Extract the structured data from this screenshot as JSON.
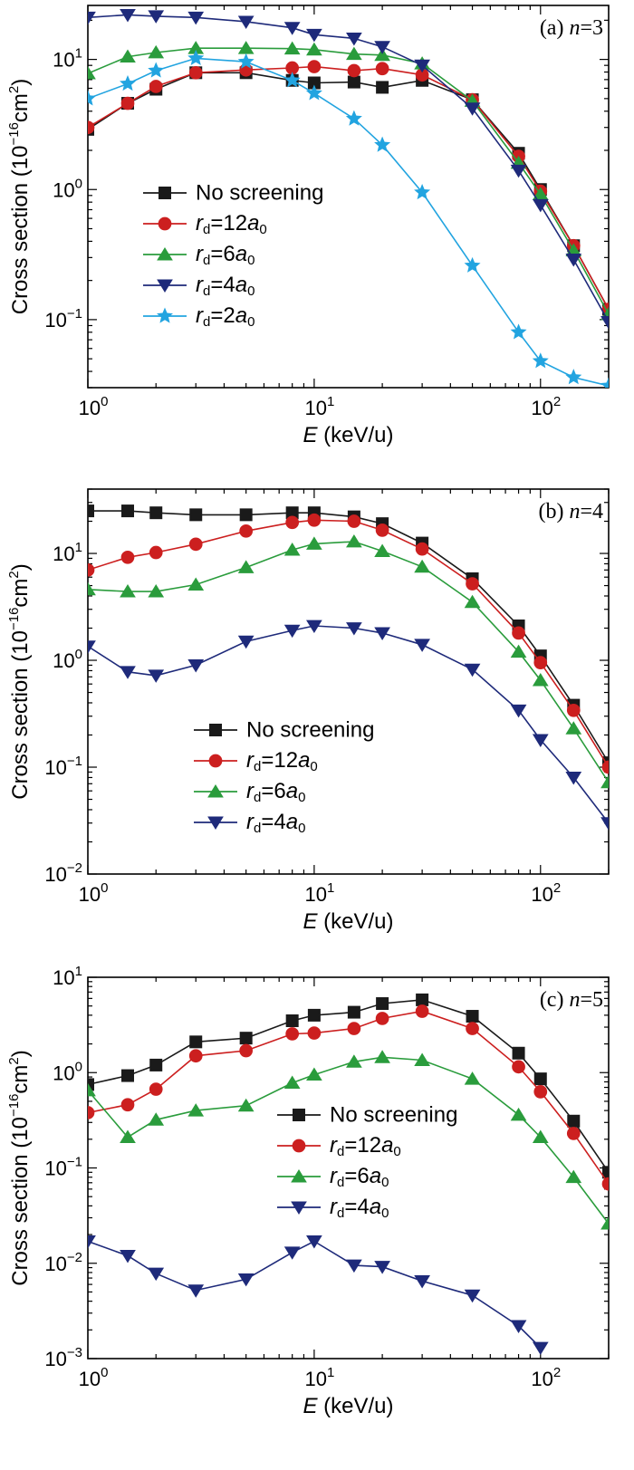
{
  "chart_data": [
    {
      "type": "line",
      "panel_label": "(a) n=3",
      "xlabel": "E (keV/u)",
      "ylabel": "Cross section (10⁻¹⁶cm²)",
      "xscale": "log",
      "yscale": "log",
      "xlim": [
        1,
        200
      ],
      "ylim": [
        0.03,
        26
      ],
      "x_ticks": [
        1,
        10,
        100
      ],
      "x_tick_labels": [
        "10⁰",
        "10¹",
        "10²"
      ],
      "y_ticks": [
        0.1,
        1,
        10
      ],
      "y_tick_labels": [
        "10⁻¹",
        "10⁰",
        "10¹"
      ],
      "legend_position": "center-left",
      "series": [
        {
          "name": "No screening",
          "color": "#1a1a1a",
          "marker": "square",
          "x": [
            1,
            1.5,
            2,
            3,
            5,
            8,
            10,
            15,
            20,
            30,
            50,
            80,
            100,
            140,
            200
          ],
          "y": [
            2.9,
            4.6,
            5.9,
            7.9,
            7.9,
            6.9,
            6.6,
            6.7,
            6.1,
            6.9,
            4.9,
            1.9,
            1.0,
            0.37,
            0.12
          ]
        },
        {
          "name": "rd=12a0",
          "color": "#cc1f1f",
          "marker": "circle",
          "x": [
            1,
            1.5,
            2,
            3,
            5,
            8,
            10,
            15,
            20,
            30,
            50,
            80,
            100,
            140,
            200
          ],
          "y": [
            3.0,
            4.6,
            6.2,
            7.9,
            8.3,
            8.6,
            8.8,
            8.2,
            8.5,
            7.6,
            4.9,
            1.8,
            0.97,
            0.37,
            0.12
          ]
        },
        {
          "name": "rd=6a0",
          "color": "#2a9c3c",
          "marker": "triangle-up",
          "x": [
            1,
            1.5,
            2,
            3,
            5,
            8,
            10,
            15,
            20,
            30,
            50,
            80,
            100,
            140,
            200
          ],
          "y": [
            7.8,
            10.5,
            11.3,
            12.2,
            12.2,
            12.1,
            11.9,
            11.0,
            10.8,
            9.3,
            4.8,
            1.6,
            0.92,
            0.34,
            0.11
          ]
        },
        {
          "name": "rd=4a0",
          "color": "#1e2a7a",
          "marker": "triangle-down",
          "x": [
            1,
            1.5,
            2,
            3,
            5,
            8,
            10,
            15,
            20,
            30,
            50,
            80,
            100,
            140,
            200
          ],
          "y": [
            21,
            22,
            21.5,
            21,
            19.5,
            17.5,
            15.5,
            14.5,
            12.5,
            9.0,
            4.2,
            1.4,
            0.76,
            0.29,
            0.096
          ]
        },
        {
          "name": "rd=2a0",
          "color": "#22a4e0",
          "marker": "star",
          "x": [
            1,
            1.5,
            2,
            3,
            5,
            8,
            10,
            15,
            20,
            30,
            50,
            80,
            100,
            140,
            200
          ],
          "y": [
            5.0,
            6.5,
            8.2,
            10.2,
            9.6,
            6.9,
            5.5,
            3.5,
            2.2,
            0.95,
            0.26,
            0.08,
            0.048,
            0.036,
            0.031
          ]
        }
      ]
    },
    {
      "type": "line",
      "panel_label": "(b) n=4",
      "xlabel": "E (keV/u)",
      "ylabel": "Cross section (10⁻¹⁶cm²)",
      "xscale": "log",
      "yscale": "log",
      "xlim": [
        1,
        200
      ],
      "ylim": [
        0.01,
        40
      ],
      "x_ticks": [
        1,
        10,
        100
      ],
      "x_tick_labels": [
        "10⁰",
        "10¹",
        "10²"
      ],
      "y_ticks": [
        0.01,
        0.1,
        1,
        10
      ],
      "y_tick_labels": [
        "10⁻²",
        "10⁻¹",
        "10⁰",
        "10¹"
      ],
      "legend_position": "lower-center",
      "series": [
        {
          "name": "No screening",
          "color": "#1a1a1a",
          "marker": "square",
          "x": [
            1,
            1.5,
            2,
            3,
            5,
            8,
            10,
            15,
            20,
            30,
            50,
            80,
            100,
            140,
            200
          ],
          "y": [
            25,
            25,
            24,
            23,
            23,
            24,
            24,
            22,
            19,
            12.5,
            5.8,
            2.1,
            1.1,
            0.38,
            0.11
          ]
        },
        {
          "name": "rd=12a0",
          "color": "#cc1f1f",
          "marker": "circle",
          "x": [
            1,
            1.5,
            2,
            3,
            5,
            8,
            10,
            15,
            20,
            30,
            50,
            80,
            100,
            140,
            200
          ],
          "y": [
            7.0,
            9.2,
            10.2,
            12.2,
            16.2,
            19.5,
            20.5,
            20.0,
            16.5,
            11.0,
            5.2,
            1.8,
            0.95,
            0.34,
            0.1
          ]
        },
        {
          "name": "rd=6a0",
          "color": "#2a9c3c",
          "marker": "triangle-up",
          "x": [
            1,
            1.5,
            2,
            3,
            5,
            8,
            10,
            15,
            20,
            30,
            50,
            80,
            100,
            140,
            200
          ],
          "y": [
            4.6,
            4.4,
            4.4,
            5.1,
            7.4,
            10.8,
            12.3,
            12.9,
            10.5,
            7.5,
            3.5,
            1.2,
            0.65,
            0.23,
            0.072
          ]
        },
        {
          "name": "rd=4a0",
          "color": "#1e2a7a",
          "marker": "triangle-down",
          "x": [
            1,
            1.5,
            2,
            3,
            5,
            8,
            10,
            15,
            20,
            30,
            50,
            80,
            100,
            140,
            200
          ],
          "y": [
            1.35,
            0.78,
            0.72,
            0.9,
            1.5,
            1.9,
            2.1,
            2.0,
            1.8,
            1.4,
            0.82,
            0.34,
            0.18,
            0.08,
            0.03
          ]
        }
      ]
    },
    {
      "type": "line",
      "panel_label": "(c) n=5",
      "xlabel": "E (keV/u)",
      "ylabel": "Cross section (10⁻¹⁶cm²)",
      "xscale": "log",
      "yscale": "log",
      "xlim": [
        1,
        200
      ],
      "ylim": [
        0.001,
        10
      ],
      "x_ticks": [
        1,
        10,
        100
      ],
      "x_tick_labels": [
        "10⁰",
        "10¹",
        "10²"
      ],
      "y_ticks": [
        0.001,
        0.01,
        0.1,
        1,
        10
      ],
      "y_tick_labels": [
        "10⁻³",
        "10⁻²",
        "10⁻¹",
        "10⁰",
        "10¹"
      ],
      "legend_position": "center-right",
      "series": [
        {
          "name": "No screening",
          "color": "#1a1a1a",
          "marker": "square",
          "x": [
            1,
            1.5,
            2,
            3,
            5,
            8,
            10,
            15,
            20,
            30,
            50,
            80,
            100,
            140,
            200
          ],
          "y": [
            0.75,
            0.93,
            1.2,
            2.1,
            2.3,
            3.5,
            4.0,
            4.3,
            5.3,
            5.8,
            3.9,
            1.6,
            0.86,
            0.31,
            0.09
          ]
        },
        {
          "name": "rd=12a0",
          "color": "#cc1f1f",
          "marker": "circle",
          "x": [
            1,
            1.5,
            2,
            3,
            5,
            8,
            10,
            15,
            20,
            30,
            50,
            80,
            100,
            140,
            200
          ],
          "y": [
            0.38,
            0.46,
            0.67,
            1.5,
            1.7,
            2.55,
            2.6,
            2.9,
            3.7,
            4.4,
            2.9,
            1.15,
            0.63,
            0.23,
            0.068
          ]
        },
        {
          "name": "rd=6a0",
          "color": "#2a9c3c",
          "marker": "triangle-up",
          "x": [
            1,
            1.5,
            2,
            3,
            5,
            8,
            10,
            15,
            20,
            30,
            50,
            80,
            100,
            140,
            200
          ],
          "y": [
            0.65,
            0.21,
            0.32,
            0.4,
            0.45,
            0.78,
            0.95,
            1.3,
            1.45,
            1.35,
            0.86,
            0.36,
            0.21,
            0.08,
            0.026
          ]
        },
        {
          "name": "rd=4a0",
          "color": "#1e2a7a",
          "marker": "triangle-down",
          "x": [
            1,
            1.5,
            2,
            3,
            5,
            8,
            10,
            15,
            20,
            30,
            50,
            80,
            100
          ],
          "y": [
            0.017,
            0.012,
            0.0078,
            0.0052,
            0.0068,
            0.013,
            0.017,
            0.0095,
            0.0092,
            0.0065,
            0.0046,
            0.0022,
            0.0013
          ]
        }
      ]
    }
  ]
}
